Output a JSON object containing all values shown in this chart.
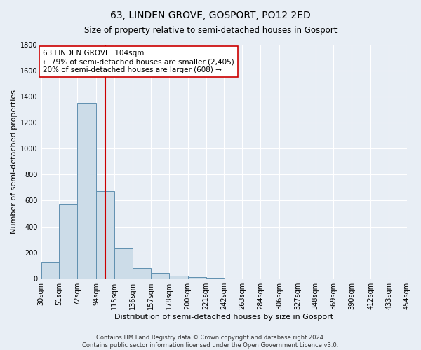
{
  "title": "63, LINDEN GROVE, GOSPORT, PO12 2ED",
  "subtitle": "Size of property relative to semi-detached houses in Gosport",
  "xlabel": "Distribution of semi-detached houses by size in Gosport",
  "ylabel": "Number of semi-detached properties",
  "bar_values": [
    120,
    570,
    1350,
    670,
    230,
    80,
    40,
    20,
    10,
    5,
    0,
    0,
    0,
    0,
    0,
    0,
    0,
    0,
    0,
    0
  ],
  "bin_labels": [
    "30sqm",
    "51sqm",
    "72sqm",
    "94sqm",
    "115sqm",
    "136sqm",
    "157sqm",
    "178sqm",
    "200sqm",
    "221sqm",
    "242sqm",
    "263sqm",
    "284sqm",
    "306sqm",
    "327sqm",
    "348sqm",
    "369sqm",
    "390sqm",
    "412sqm",
    "433sqm",
    "454sqm"
  ],
  "bin_edges": [
    30,
    51,
    72,
    94,
    115,
    136,
    157,
    178,
    200,
    221,
    242,
    263,
    284,
    306,
    327,
    348,
    369,
    390,
    412,
    433,
    454
  ],
  "bar_color": "#ccdce8",
  "bar_edge_color": "#6090b0",
  "vline_x": 104,
  "vline_color": "#cc0000",
  "annotation_text_line1": "63 LINDEN GROVE: 104sqm",
  "annotation_text_line2": "← 79% of semi-detached houses are smaller (2,405)",
  "annotation_text_line3": "20% of semi-detached houses are larger (608) →",
  "annotation_box_color": "#ffffff",
  "annotation_box_edge": "#cc0000",
  "ylim": [
    0,
    1800
  ],
  "yticks": [
    0,
    200,
    400,
    600,
    800,
    1000,
    1200,
    1400,
    1600,
    1800
  ],
  "footer_line1": "Contains HM Land Registry data © Crown copyright and database right 2024.",
  "footer_line2": "Contains public sector information licensed under the Open Government Licence v3.0.",
  "bg_color": "#e8eef5",
  "plot_bg_color": "#e8eef5",
  "grid_color": "#ffffff",
  "title_fontsize": 10,
  "subtitle_fontsize": 8.5,
  "axis_label_fontsize": 8,
  "tick_fontsize": 7,
  "footer_fontsize": 6,
  "annotation_fontsize": 7.5
}
